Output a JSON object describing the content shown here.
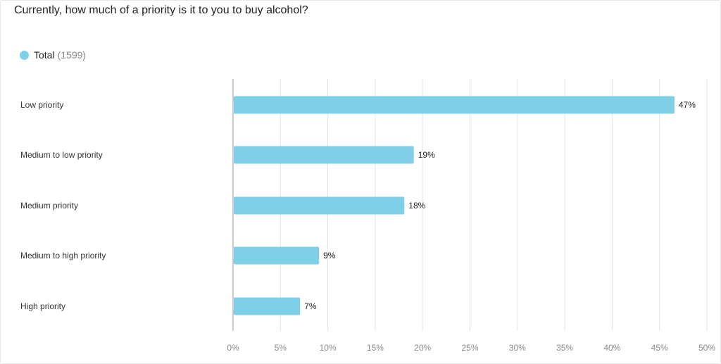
{
  "title": "Currently, how much of a priority is it to you to buy alcohol?",
  "legend": {
    "label": "Total",
    "count": "(1599)"
  },
  "colors": {
    "bar": "#7fcfe6",
    "grid": "#e3e3e3",
    "axis": "#9a9a9a"
  },
  "chart_data": {
    "type": "bar",
    "orientation": "horizontal",
    "categories": [
      "Low priority",
      "Medium to low priority",
      "Medium priority",
      "Medium to high priority",
      "High priority"
    ],
    "series": [
      {
        "name": "Total",
        "values": [
          46.5,
          19,
          18,
          9,
          7
        ]
      }
    ],
    "value_labels": [
      "47%",
      "19%",
      "18%",
      "9%",
      "7%"
    ],
    "xlim": [
      0,
      50
    ],
    "ticks": [
      0,
      5,
      10,
      15,
      20,
      25,
      30,
      35,
      40,
      45,
      50
    ],
    "tick_labels": [
      "0%",
      "5%",
      "10%",
      "15%",
      "20%",
      "25%",
      "30%",
      "35%",
      "40%",
      "45%",
      "50%"
    ],
    "grid": true,
    "legend_position": "top-left"
  }
}
